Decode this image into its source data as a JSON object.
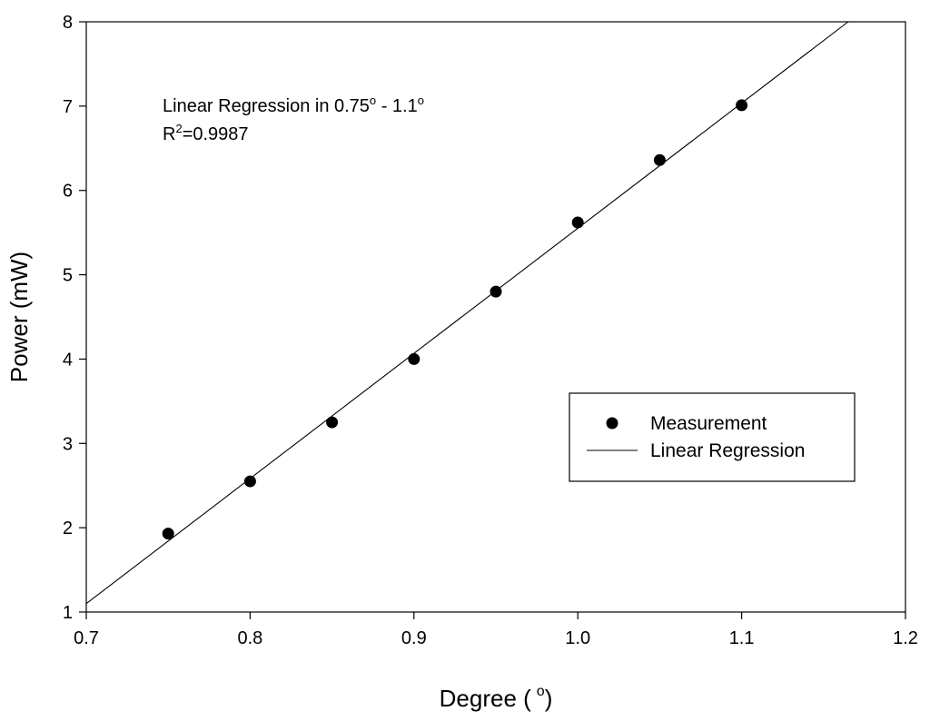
{
  "chart_data": {
    "type": "scatter",
    "xlabel": "Degree (",
    "xlabel_unit_sup": "o",
    "xlabel_close": ")",
    "ylabel": "Power (mW)",
    "xlim": [
      0.7,
      1.2
    ],
    "ylim": [
      1,
      8
    ],
    "xticks": [
      "0.7",
      "0.8",
      "0.9",
      "1.0",
      "1.1",
      "1.2"
    ],
    "xtick_values": [
      0.7,
      0.8,
      0.9,
      1.0,
      1.1,
      1.2
    ],
    "yticks": [
      "1",
      "2",
      "3",
      "4",
      "5",
      "6",
      "7",
      "8"
    ],
    "ytick_values": [
      1,
      2,
      3,
      4,
      5,
      6,
      7,
      8
    ],
    "grid": false,
    "legend_placement": "center-right",
    "series": [
      {
        "name": "Measurement",
        "kind": "scatter",
        "color": "#000000",
        "x": [
          0.75,
          0.8,
          0.85,
          0.9,
          0.95,
          1.0,
          1.05,
          1.1
        ],
        "y": [
          1.93,
          2.55,
          3.25,
          4.0,
          4.8,
          5.62,
          6.36,
          7.01
        ]
      },
      {
        "name": "Linear Regression",
        "kind": "line",
        "color": "#000000",
        "x": [
          0.7,
          1.165
        ],
        "y": [
          1.1,
          8.0
        ]
      }
    ],
    "annotation": {
      "line1_prefix": "Linear Regression in 0.75",
      "sup1": "o",
      "line1_mid": " - 1.1",
      "sup2": "o",
      "line2_prefix": "R",
      "sup3": "2",
      "line2_suffix": "=0.9987"
    }
  }
}
